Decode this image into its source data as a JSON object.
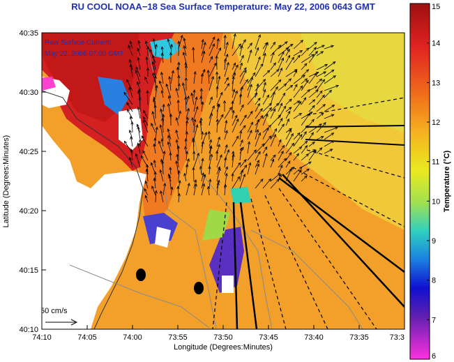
{
  "title": "RU COOL  NOAA−18  Sea Surface Temperature:  May 22, 2006 0643 GMT",
  "current_note": {
    "line1": "Raw Surface Current:",
    "line2": "May 22, 2006 07:00 GMT"
  },
  "scale_arrow_label": "50 cm/s",
  "axes": {
    "xlabel": "Longitude (Degrees:Minutes)",
    "ylabel": "Latitude (Degrees:Minutes)",
    "x_ticks": [
      "74:10",
      "74:05",
      "74:00",
      "73:55",
      "73:50",
      "73:45",
      "73:40",
      "73:35",
      "73:3"
    ],
    "y_ticks": [
      "40:35",
      "40:30",
      "40:25",
      "40:20",
      "40:15",
      "40:10"
    ]
  },
  "colorbar": {
    "label": "Temperature (°C)",
    "min": 6,
    "max": 15,
    "ticks": [
      "15",
      "14",
      "13",
      "12",
      "11",
      "10",
      "9",
      "8",
      "7",
      "6"
    ]
  },
  "colors": {
    "title": "#1f2fb0",
    "land": "#ffffff",
    "warm": "#d42020",
    "cool": "#f0b030"
  }
}
